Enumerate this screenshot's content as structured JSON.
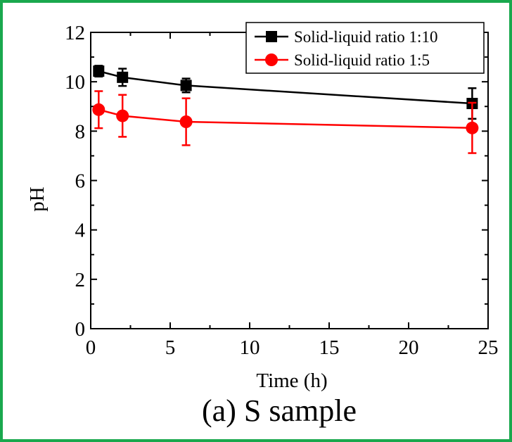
{
  "chart_data": {
    "type": "line",
    "title": "",
    "caption": "(a) S sample",
    "xlabel": "Time (h)",
    "ylabel": "pH",
    "xlim": [
      0,
      25
    ],
    "ylim": [
      0,
      12
    ],
    "xticks": [
      0,
      5,
      10,
      15,
      20,
      25
    ],
    "yticks": [
      0,
      2,
      4,
      6,
      8,
      10,
      12
    ],
    "xtick_labels": [
      "0",
      "5",
      "10",
      "15",
      "20",
      "25"
    ],
    "ytick_labels": [
      "0",
      "2",
      "4",
      "6",
      "8",
      "10",
      "12"
    ],
    "grid": false,
    "legend_position": "top-right",
    "x": [
      0.5,
      2,
      6,
      24
    ],
    "series": [
      {
        "name": "Solid-liquid ratio 1:10",
        "color": "#000000",
        "marker": "square",
        "values": [
          10.43,
          10.18,
          9.85,
          9.12
        ],
        "errors": [
          0.22,
          0.35,
          0.28,
          0.62
        ]
      },
      {
        "name": "Solid-liquid ratio 1:5",
        "color": "#ff0000",
        "marker": "circle",
        "values": [
          8.87,
          8.62,
          8.38,
          8.13
        ],
        "errors": [
          0.75,
          0.85,
          0.95,
          1.02
        ]
      }
    ]
  }
}
